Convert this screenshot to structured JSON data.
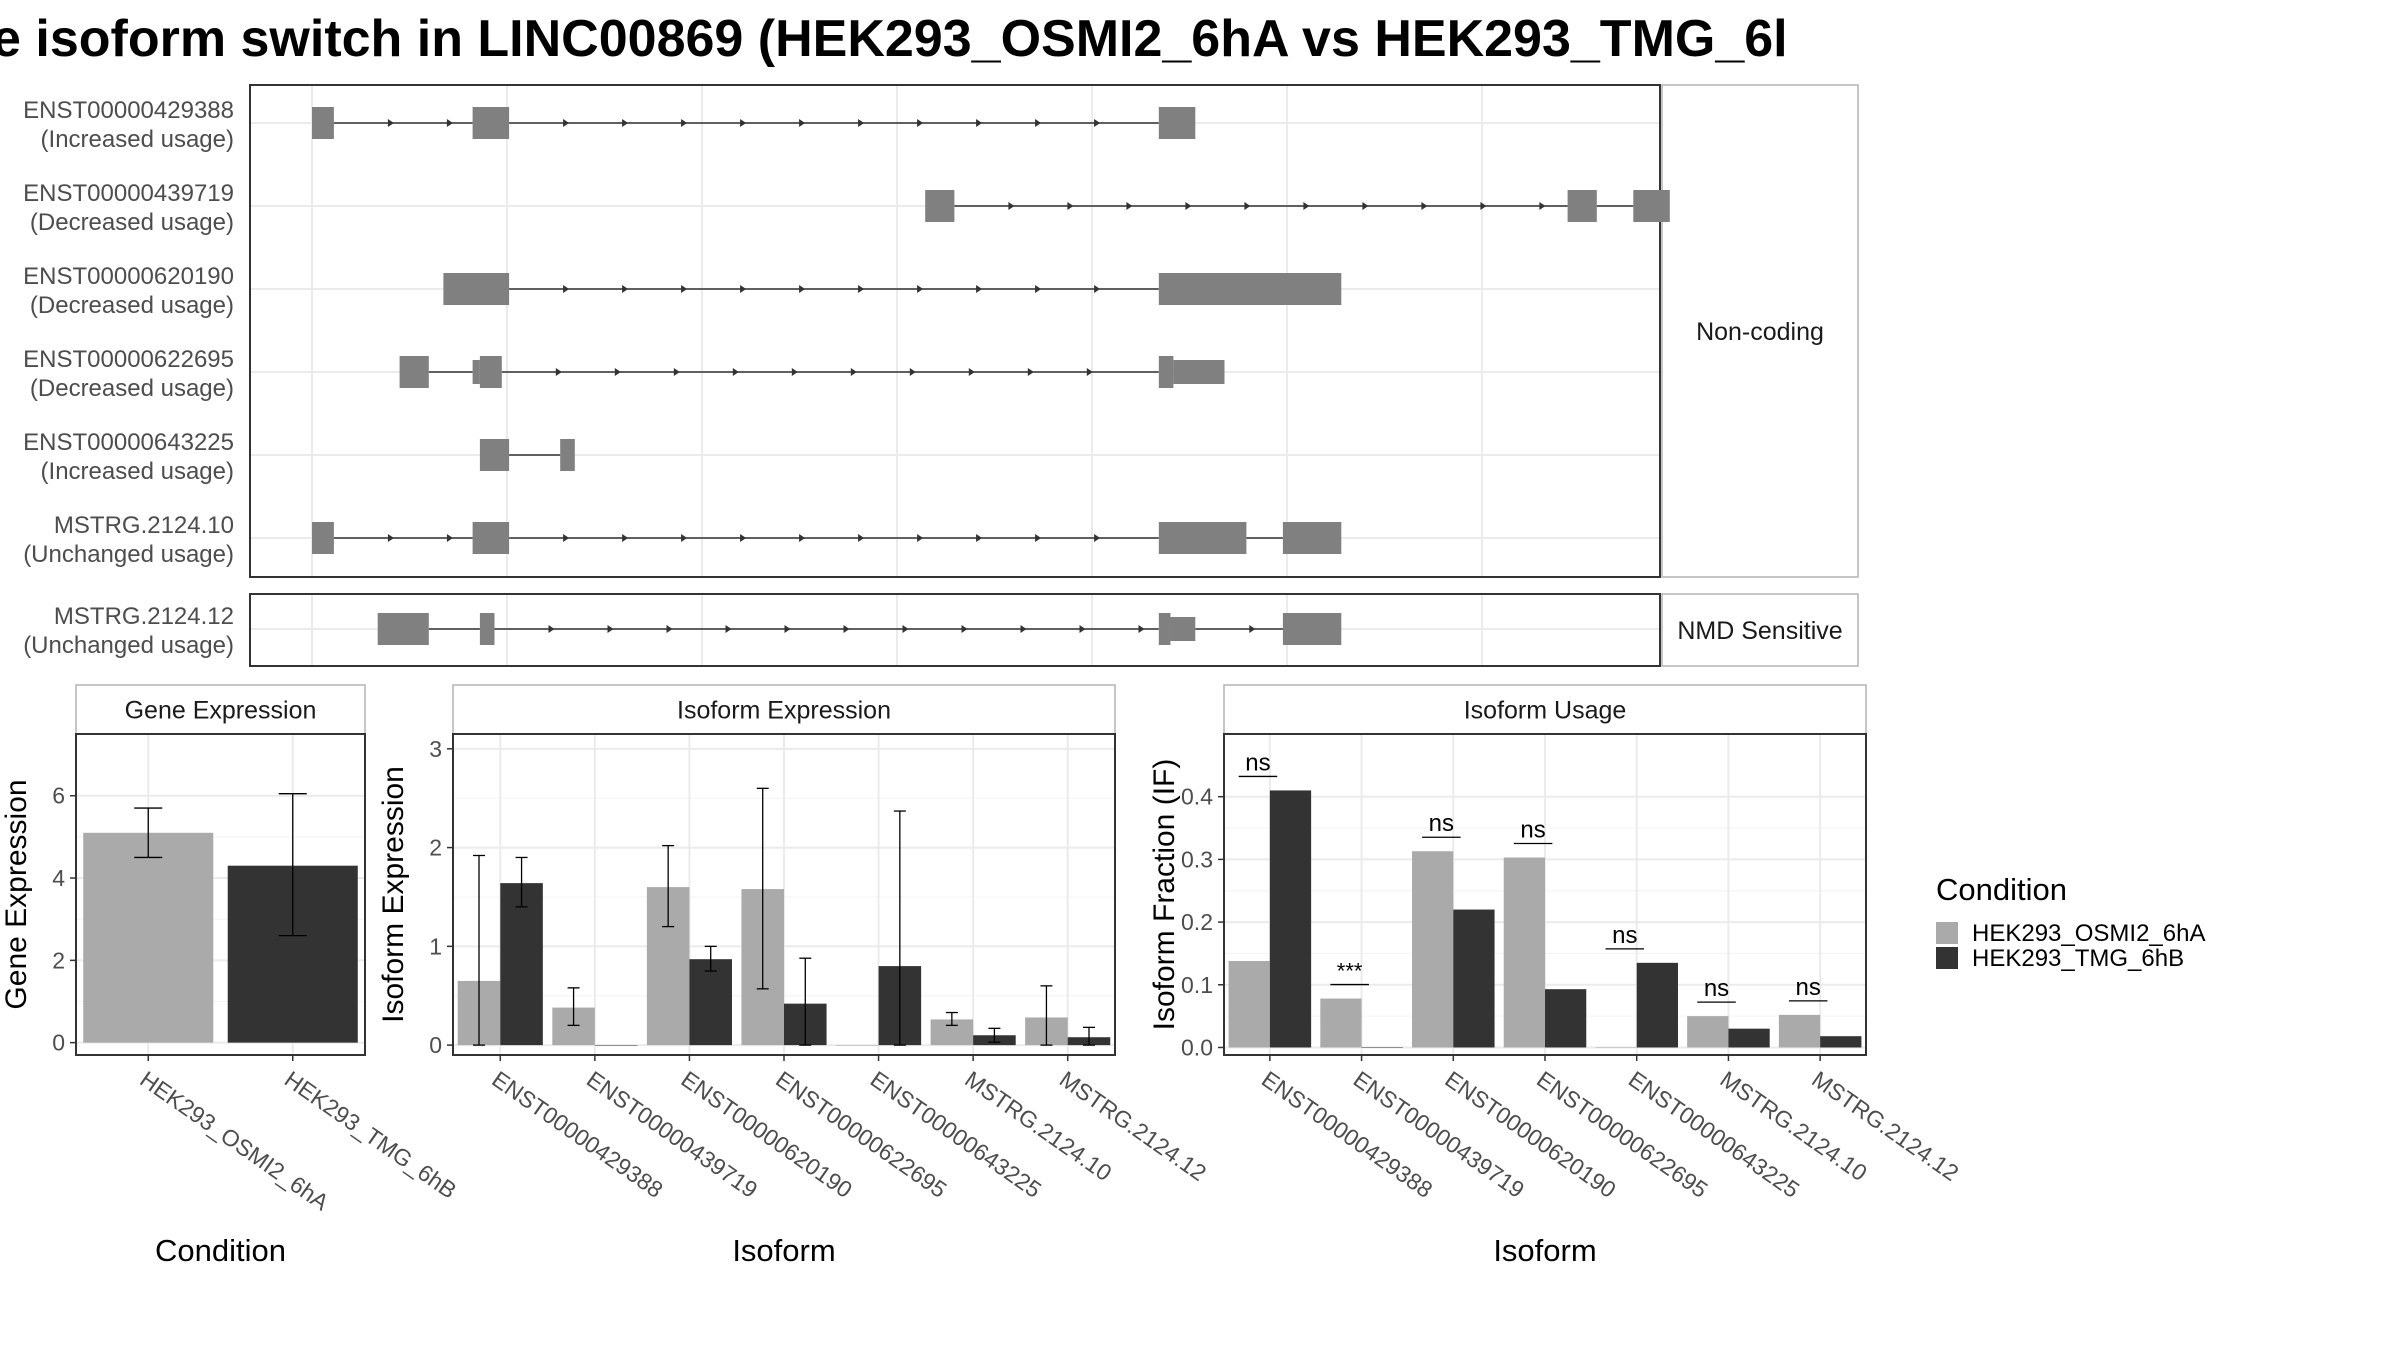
{
  "title": "e isoform switch in LINC00869 (HEK293_OSMI2_6hA vs HEK293_TMG_6l",
  "colors": {
    "osmi": "#aaaaaa",
    "tmg": "#333333",
    "exon": "#808080",
    "line": "#333333",
    "panel_border": "#333333",
    "grid": "#ebebeb",
    "strip_border": "#b3b3b3"
  },
  "structure": {
    "facets": [
      "Non-coding",
      "NMD Sensitive"
    ],
    "tracks": [
      {
        "id": "ENST00000429388",
        "usage": "(Increased usage)",
        "facet": "Non-coding",
        "exons": [
          [
            0.0,
            1.5,
            "n"
          ],
          [
            11.0,
            13.5,
            "n"
          ],
          [
            58.0,
            60.5,
            "n"
          ]
        ],
        "arrows": 1
      },
      {
        "id": "ENST00000439719",
        "usage": "(Decreased usage)",
        "facet": "Non-coding",
        "exons": [
          [
            42.0,
            44.0,
            "n"
          ],
          [
            86.0,
            88.0,
            "n"
          ],
          [
            90.5,
            93.0,
            "n"
          ]
        ],
        "arrows": 1
      },
      {
        "id": "ENST00000620190",
        "usage": "(Decreased usage)",
        "facet": "Non-coding",
        "exons": [
          [
            9.0,
            13.5,
            "n"
          ],
          [
            58.0,
            70.5,
            "n"
          ]
        ],
        "arrows": 1
      },
      {
        "id": "ENST00000622695",
        "usage": "(Decreased usage)",
        "facet": "Non-coding",
        "exons": [
          [
            6.0,
            8.0,
            "n"
          ],
          [
            11.0,
            11.5,
            "t"
          ],
          [
            11.5,
            13.0,
            "n"
          ],
          [
            58.0,
            59.0,
            "n"
          ],
          [
            59.0,
            62.5,
            "t"
          ]
        ],
        "arrows": 1
      },
      {
        "id": "ENST00000643225",
        "usage": "(Increased usage)",
        "facet": "Non-coding",
        "exons": [
          [
            11.5,
            13.5,
            "n"
          ],
          [
            17.0,
            18.0,
            "n"
          ]
        ],
        "arrows": 0
      },
      {
        "id": "MSTRG.2124.10",
        "usage": "(Unchanged usage)",
        "facet": "Non-coding",
        "exons": [
          [
            0.0,
            1.5,
            "n"
          ],
          [
            11.0,
            13.5,
            "n"
          ],
          [
            58.0,
            64.0,
            "n"
          ],
          [
            66.5,
            70.5,
            "n"
          ]
        ],
        "arrows": 1
      },
      {
        "id": "MSTRG.2124.12",
        "usage": "(Unchanged usage)",
        "facet": "NMD Sensitive",
        "exons": [
          [
            4.5,
            8.0,
            "n"
          ],
          [
            11.5,
            12.5,
            "n"
          ],
          [
            58.0,
            58.8,
            "n"
          ],
          [
            58.8,
            60.5,
            "t"
          ],
          [
            66.5,
            70.5,
            "n"
          ]
        ],
        "arrows": 1
      }
    ]
  },
  "chart_data": [
    {
      "type": "bar",
      "title": "Gene Expression",
      "xlabel": "Condition",
      "ylabel": "Gene Expression",
      "categories": [
        "HEK293_OSMI2_6hA",
        "HEK293_TMG_6hB"
      ],
      "values": [
        5.1,
        4.3
      ],
      "error_low": [
        4.5,
        2.6
      ],
      "error_high": [
        5.7,
        6.05
      ],
      "ylim": [
        -0.3,
        7.5
      ],
      "yticks": [
        0,
        2,
        4,
        6
      ],
      "grid": true
    },
    {
      "type": "bar",
      "title": "Isoform Expression",
      "xlabel": "Isoform",
      "ylabel": "Isoform Expression",
      "categories": [
        "ENST00000429388",
        "ENST00000439719",
        "ENST00000620190",
        "ENST00000622695",
        "ENST00000643225",
        "MSTRG.2124.10",
        "MSTRG.2124.12"
      ],
      "series": [
        {
          "name": "HEK293_OSMI2_6hA",
          "values": [
            0.65,
            0.38,
            1.6,
            1.58,
            0.0,
            0.26,
            0.28
          ],
          "error_low": [
            0.0,
            0.2,
            1.2,
            0.57,
            0.0,
            0.2,
            0.0
          ],
          "error_high": [
            1.92,
            0.58,
            2.02,
            2.6,
            0.0,
            0.33,
            0.6
          ]
        },
        {
          "name": "HEK293_TMG_6hB",
          "values": [
            1.64,
            0.0,
            0.87,
            0.42,
            0.8,
            0.1,
            0.08
          ],
          "error_low": [
            1.4,
            0.0,
            0.75,
            0.0,
            0.0,
            0.03,
            0.0
          ],
          "error_high": [
            1.9,
            0.0,
            1.0,
            0.88,
            2.37,
            0.17,
            0.18
          ]
        }
      ],
      "ylim": [
        -0.1,
        3.15
      ],
      "yticks": [
        0,
        1,
        2,
        3
      ],
      "grid": true
    },
    {
      "type": "bar",
      "title": "Isoform Usage",
      "xlabel": "Isoform",
      "ylabel": "Isoform Fraction (IF)",
      "categories": [
        "ENST00000429388",
        "ENST00000439719",
        "ENST00000620190",
        "ENST00000622695",
        "ENST00000643225",
        "MSTRG.2124.10",
        "MSTRG.2124.12"
      ],
      "series": [
        {
          "name": "HEK293_OSMI2_6hA",
          "values": [
            0.138,
            0.078,
            0.313,
            0.303,
            0.0,
            0.05,
            0.052
          ]
        },
        {
          "name": "HEK293_TMG_6hB",
          "values": [
            0.41,
            0.0,
            0.22,
            0.093,
            0.135,
            0.03,
            0.018
          ]
        }
      ],
      "significance": [
        "ns",
        "***",
        "ns",
        "ns",
        "ns",
        "ns",
        "ns"
      ],
      "ylim": [
        -0.012,
        0.5
      ],
      "yticks": [
        0.0,
        0.1,
        0.2,
        0.3,
        0.4
      ],
      "yticklabels": [
        "0.0",
        "0.1",
        "0.2",
        "0.3",
        "0.4"
      ],
      "grid": true
    }
  ],
  "legend": {
    "title": "Condition",
    "entries": [
      "HEK293_OSMI2_6hA",
      "HEK293_TMG_6hB"
    ]
  }
}
